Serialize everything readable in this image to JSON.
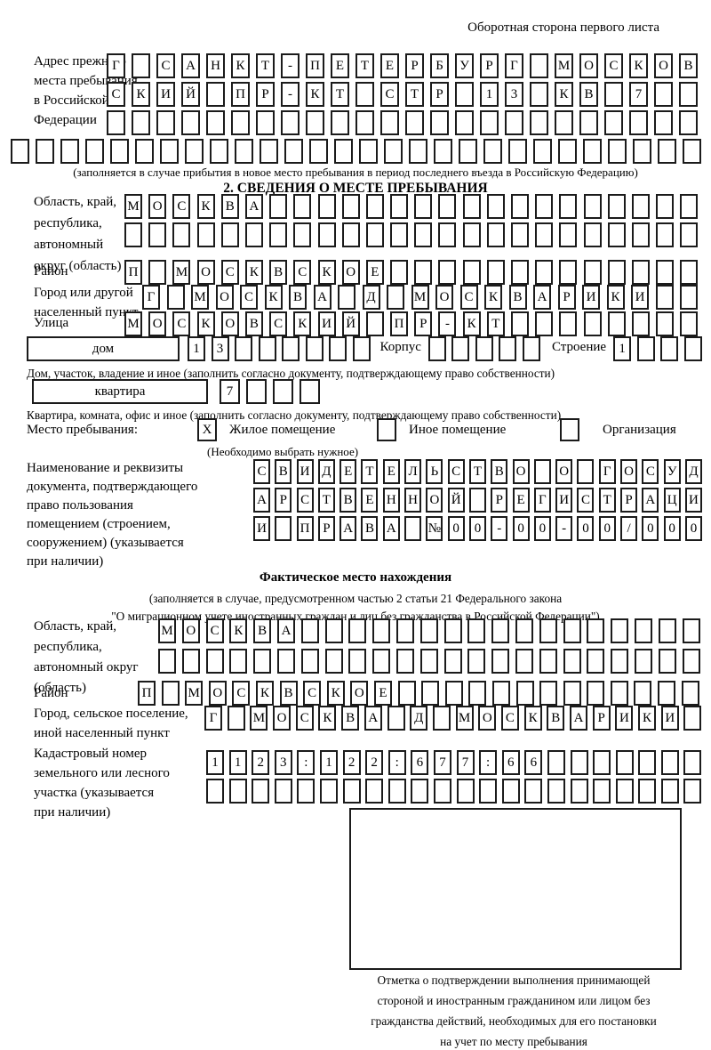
{
  "page": {
    "header_note": "Оборотная сторона первого листа"
  },
  "prev_address": {
    "label_lines": [
      "Адрес прежнего",
      "места пребывания",
      "в Российской",
      "Федерации"
    ],
    "rows": [
      "Г САНКТ-ПЕТЕРБУРГ МОСКОВ",
      "СКИЙ ПР-КТ СТР 13 КВ 7  ",
      "                        "
    ],
    "full_row": "                            ",
    "note": "(заполняется в случае прибытия в новое место пребывания в период последнего въезда в Российскую Федерацию)"
  },
  "section2": {
    "title": "2. СВЕДЕНИЯ О МЕСТЕ ПРЕБЫВАНИЯ",
    "oblast": {
      "label_lines": [
        "Область, край,",
        "республика,",
        "автономный",
        "округ (область)"
      ],
      "rows": [
        "МОСКВА                  ",
        "                        "
      ]
    },
    "raion": {
      "label": "Район",
      "row": "П МОСКВСКОЕ             "
    },
    "gorod": {
      "label_lines": [
        "Город или другой",
        "населенный пункт"
      ],
      "row": "Г МОСКВА Д МОСКВАРИКИ  "
    },
    "ulitsa": {
      "label": "Улица",
      "row": "МОСКОВСКИЙ ПР-КТ        "
    },
    "dom": {
      "label": "дом",
      "cells": "13      ",
      "korpus_label": "Корпус",
      "korpus_cells": "     ",
      "stroenie_label": "Строение",
      "stroenie_cells": "1   ",
      "caption": "Дом, участок, владение и иное (заполнить согласно документу, подтверждающему право собственности)"
    },
    "kvartira": {
      "label": "квартира",
      "cells": "7   ",
      "caption": "Квартира, комната, офис и иное (заполнить согласно документу, подтверждающему право собственности)"
    },
    "mesto": {
      "label": "Место пребывания:",
      "options": [
        {
          "label": "Жилое помещение",
          "mark": "X"
        },
        {
          "label": "Иное помещение",
          "mark": ""
        },
        {
          "label": "Организация",
          "mark": ""
        }
      ],
      "note": "(Необходимо выбрать нужное)"
    },
    "document": {
      "label_lines": [
        "Наименование и реквизиты",
        "документа, подтверждающего",
        "право пользования",
        "помещением (строением,",
        "сооружением) (указывается",
        "при наличии)"
      ],
      "rows": [
        "СВИДЕТЕЛЬСТВО О ГОСУД",
        "АРСТВЕННОЙ РЕГИСТРАЦИ",
        "И ПРАВА №00-00-00/000"
      ]
    }
  },
  "fact": {
    "title": "Фактическое место нахождения",
    "note_lines": [
      "(заполняется в случае, предусмотренном частью 2 статьи 21 Федерального закона",
      "\"О миграционном учете иностранных граждан и лиц без гражданства в Российской Федерации\")"
    ],
    "oblast": {
      "label_lines": [
        "Область, край,",
        "республика,",
        "автономный округ",
        "(область)"
      ],
      "rows": [
        "МОСКВА                 ",
        "                       "
      ]
    },
    "raion": {
      "label": "Район",
      "row": "П МОСКВСКОЕ             "
    },
    "gorod": {
      "label_lines": [
        "Город, сельское поселение,",
        "иной населенный пункт"
      ],
      "row": "Г МОСКВА Д МОСКВАРИКИ "
    },
    "kadastr": {
      "label_lines": [
        "Кадастровый номер",
        "земельного или лесного",
        "участка (указывается",
        "при наличии)"
      ],
      "rows": [
        "1123:122:677:66       ",
        "                      "
      ]
    },
    "stamp_caption_lines": [
      "Отметка о подтверждении выполнения принимающей",
      "стороной и иностранным гражданином или лицом без",
      "гражданства действий, необходимых для его постановки",
      "на учет по месту пребывания"
    ]
  }
}
